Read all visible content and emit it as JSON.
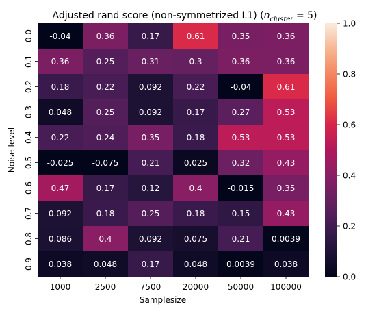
{
  "chart_data": {
    "type": "heatmap",
    "title": "Adjusted rand score (non-symmetrized L1) (",
    "title_math": {
      "n": "n",
      "sub": "cluster",
      "rest": " = 5)"
    },
    "xlabel": "Samplesize",
    "ylabel": "Noise-level",
    "x_categories": [
      "1000",
      "2500",
      "7500",
      "20000",
      "50000",
      "100000"
    ],
    "y_categories": [
      "0.0",
      "0.1",
      "0.2",
      "0.3",
      "0.4",
      "0.5",
      "0.6",
      "0.7",
      "0.8",
      "0.9"
    ],
    "values": [
      [
        -0.04,
        0.36,
        0.17,
        0.61,
        0.35,
        0.36
      ],
      [
        0.36,
        0.25,
        0.31,
        0.3,
        0.36,
        0.36
      ],
      [
        0.18,
        0.22,
        0.092,
        0.22,
        -0.04,
        0.61
      ],
      [
        0.048,
        0.25,
        0.092,
        0.17,
        0.27,
        0.53
      ],
      [
        0.22,
        0.24,
        0.35,
        0.18,
        0.53,
        0.53
      ],
      [
        -0.025,
        -0.075,
        0.21,
        0.025,
        0.32,
        0.43
      ],
      [
        0.47,
        0.17,
        0.12,
        0.4,
        -0.015,
        0.35
      ],
      [
        0.092,
        0.18,
        0.25,
        0.18,
        0.15,
        0.43
      ],
      [
        0.086,
        0.4,
        0.092,
        0.075,
        0.21,
        0.0039
      ],
      [
        0.038,
        0.048,
        0.17,
        0.048,
        0.0039,
        0.038
      ]
    ],
    "annotations": [
      [
        "-0.04",
        "0.36",
        "0.17",
        "0.61",
        "0.35",
        "0.36"
      ],
      [
        "0.36",
        "0.25",
        "0.31",
        "0.3",
        "0.36",
        "0.36"
      ],
      [
        "0.18",
        "0.22",
        "0.092",
        "0.22",
        "-0.04",
        "0.61"
      ],
      [
        "0.048",
        "0.25",
        "0.092",
        "0.17",
        "0.27",
        "0.53"
      ],
      [
        "0.22",
        "0.24",
        "0.35",
        "0.18",
        "0.53",
        "0.53"
      ],
      [
        "-0.025",
        "-0.075",
        "0.21",
        "0.025",
        "0.32",
        "0.43"
      ],
      [
        "0.47",
        "0.17",
        "0.12",
        "0.4",
        "-0.015",
        "0.35"
      ],
      [
        "0.092",
        "0.18",
        "0.25",
        "0.18",
        "0.15",
        "0.43"
      ],
      [
        "0.086",
        "0.4",
        "0.092",
        "0.075",
        "0.21",
        "0.0039"
      ],
      [
        "0.038",
        "0.048",
        "0.17",
        "0.048",
        "0.0039",
        "0.038"
      ]
    ],
    "colorbar": {
      "vmin": 0.0,
      "vmax": 1.0,
      "ticks": [
        "0.0",
        "0.2",
        "0.4",
        "0.6",
        "0.8",
        "1.0"
      ],
      "colormap": "rocket"
    }
  }
}
